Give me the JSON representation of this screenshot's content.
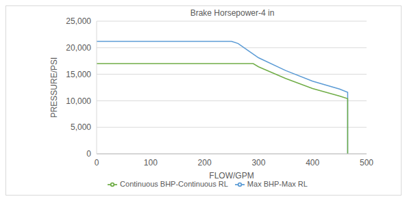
{
  "chart_data": {
    "type": "line",
    "title": "Brake Horsepower-4 in",
    "x_label": "FLOW/GPM",
    "y_label": "PRESSURE/PSI",
    "series": [
      {
        "name": "Max BHP-Max RL",
        "color": "#5b9bd5",
        "x": [
          0,
          250,
          262,
          280,
          300,
          350,
          400,
          450,
          465,
          465
        ],
        "values": [
          21200,
          21200,
          20800,
          19500,
          18100,
          15700,
          13700,
          12200,
          11600,
          0
        ]
      },
      {
        "name": "Continuous BHP-Continuous RL",
        "color": "#70ad47",
        "x": [
          0,
          290,
          300,
          350,
          400,
          450,
          465,
          465
        ],
        "values": [
          17000,
          17000,
          16400,
          14200,
          12300,
          10900,
          10400,
          0
        ]
      }
    ],
    "xlim": [
      0,
      500
    ],
    "xticks": [
      0,
      100,
      200,
      300,
      400,
      500
    ],
    "ylim": [
      0,
      25000
    ],
    "yticks": [
      {
        "value": 0,
        "label": "0"
      },
      {
        "value": 5000,
        "label": "5,000"
      },
      {
        "value": 10000,
        "label": "10,000"
      },
      {
        "value": 15000,
        "label": "15,000"
      },
      {
        "value": 20000,
        "label": "20,000"
      },
      {
        "value": 25000,
        "label": "25,000"
      }
    ],
    "grid": "y",
    "legend": "bottom"
  }
}
